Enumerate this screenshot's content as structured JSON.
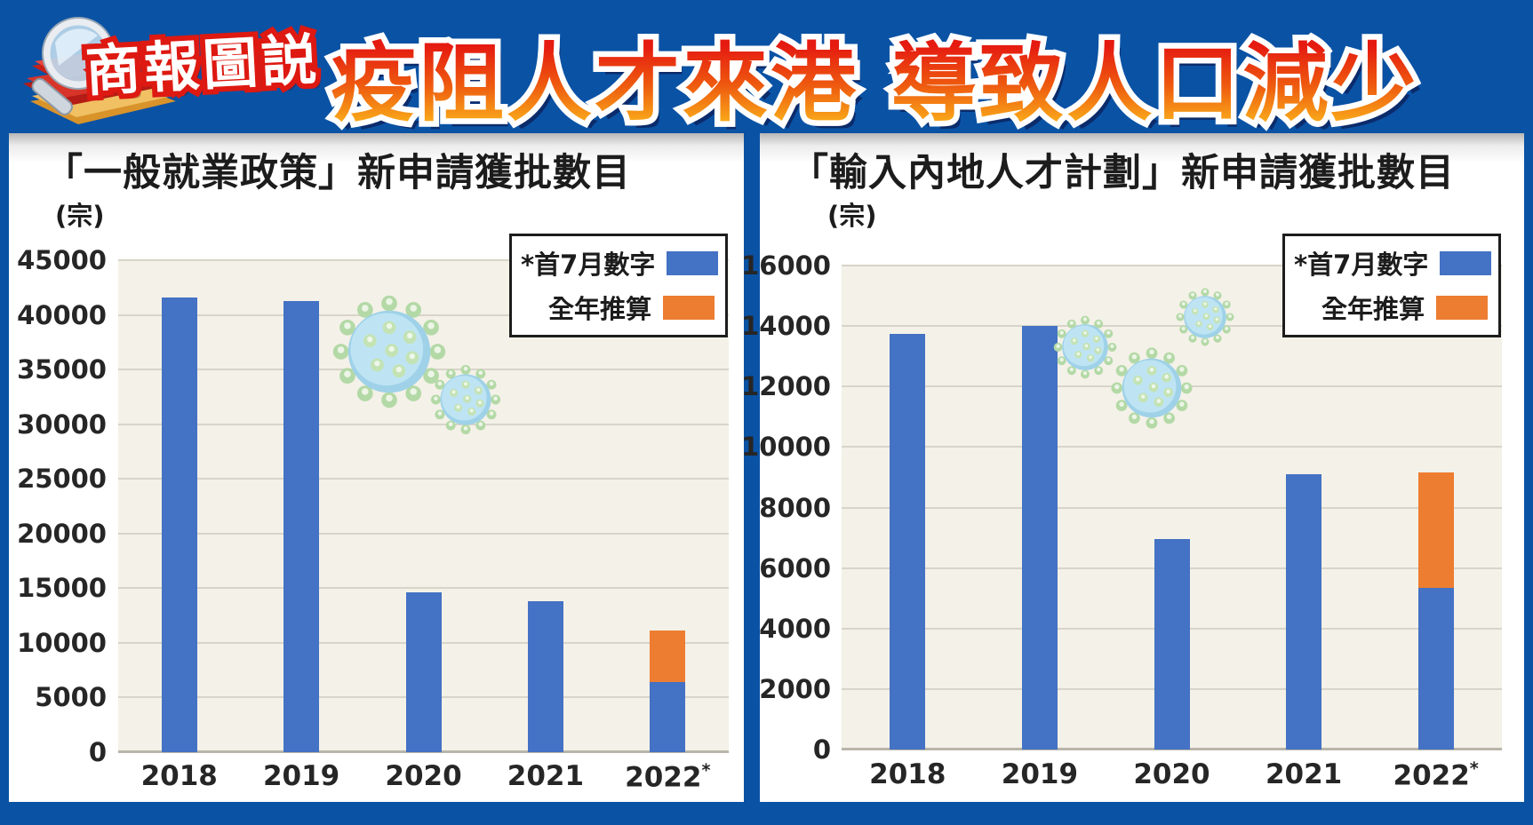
{
  "header": {
    "logo_label": "商報圖説",
    "title": "疫阻人才來港  導致人口減少"
  },
  "colors": {
    "background_blue": "#0a52a4",
    "bar_blue": "#4472c4",
    "bar_orange": "#ed7d31",
    "plot_background": "#f4f1e8",
    "title_gradient_top": "#e51a10",
    "title_gradient_bottom": "#f9ac1a"
  },
  "chart_data": [
    {
      "type": "bar",
      "stacked": true,
      "title": "「一般就業政策」新申請獲批數目",
      "ylabel_unit": "(宗)",
      "categories": [
        "2018",
        "2019",
        "2020",
        "2021",
        "2022*"
      ],
      "series": [
        {
          "name": "*首7月數字",
          "color": "#4472c4",
          "values": [
            41600,
            41300,
            14600,
            13800,
            6400
          ]
        },
        {
          "name": "全年推算",
          "color": "#ed7d31",
          "values": [
            0,
            0,
            0,
            0,
            4700
          ]
        }
      ],
      "totals_2022": {
        "first_7_months": 6400,
        "full_year_projection": 11100
      },
      "ylim": [
        0,
        45000
      ],
      "ytick_step": 5000,
      "yticks": [
        45000,
        40000,
        35000,
        30000,
        25000,
        20000,
        15000,
        10000,
        5000,
        0
      ],
      "grid": true,
      "legend_position": "top-right"
    },
    {
      "type": "bar",
      "stacked": true,
      "title": "「輸入內地人才計劃」新申請獲批數目",
      "ylabel_unit": "(宗)",
      "categories": [
        "2018",
        "2019",
        "2020",
        "2021",
        "2022*"
      ],
      "series": [
        {
          "name": "*首7月數字",
          "color": "#4472c4",
          "values": [
            13750,
            14000,
            6950,
            9100,
            5350
          ]
        },
        {
          "name": "全年推算",
          "color": "#ed7d31",
          "values": [
            0,
            0,
            0,
            0,
            3800
          ]
        }
      ],
      "totals_2022": {
        "first_7_months": 5350,
        "full_year_projection": 9150
      },
      "ylim": [
        0,
        16000
      ],
      "ytick_step": 2000,
      "yticks": [
        16000,
        14000,
        12000,
        10000,
        8000,
        6000,
        4000,
        2000,
        0
      ],
      "grid": true,
      "legend_position": "top-right"
    }
  ]
}
